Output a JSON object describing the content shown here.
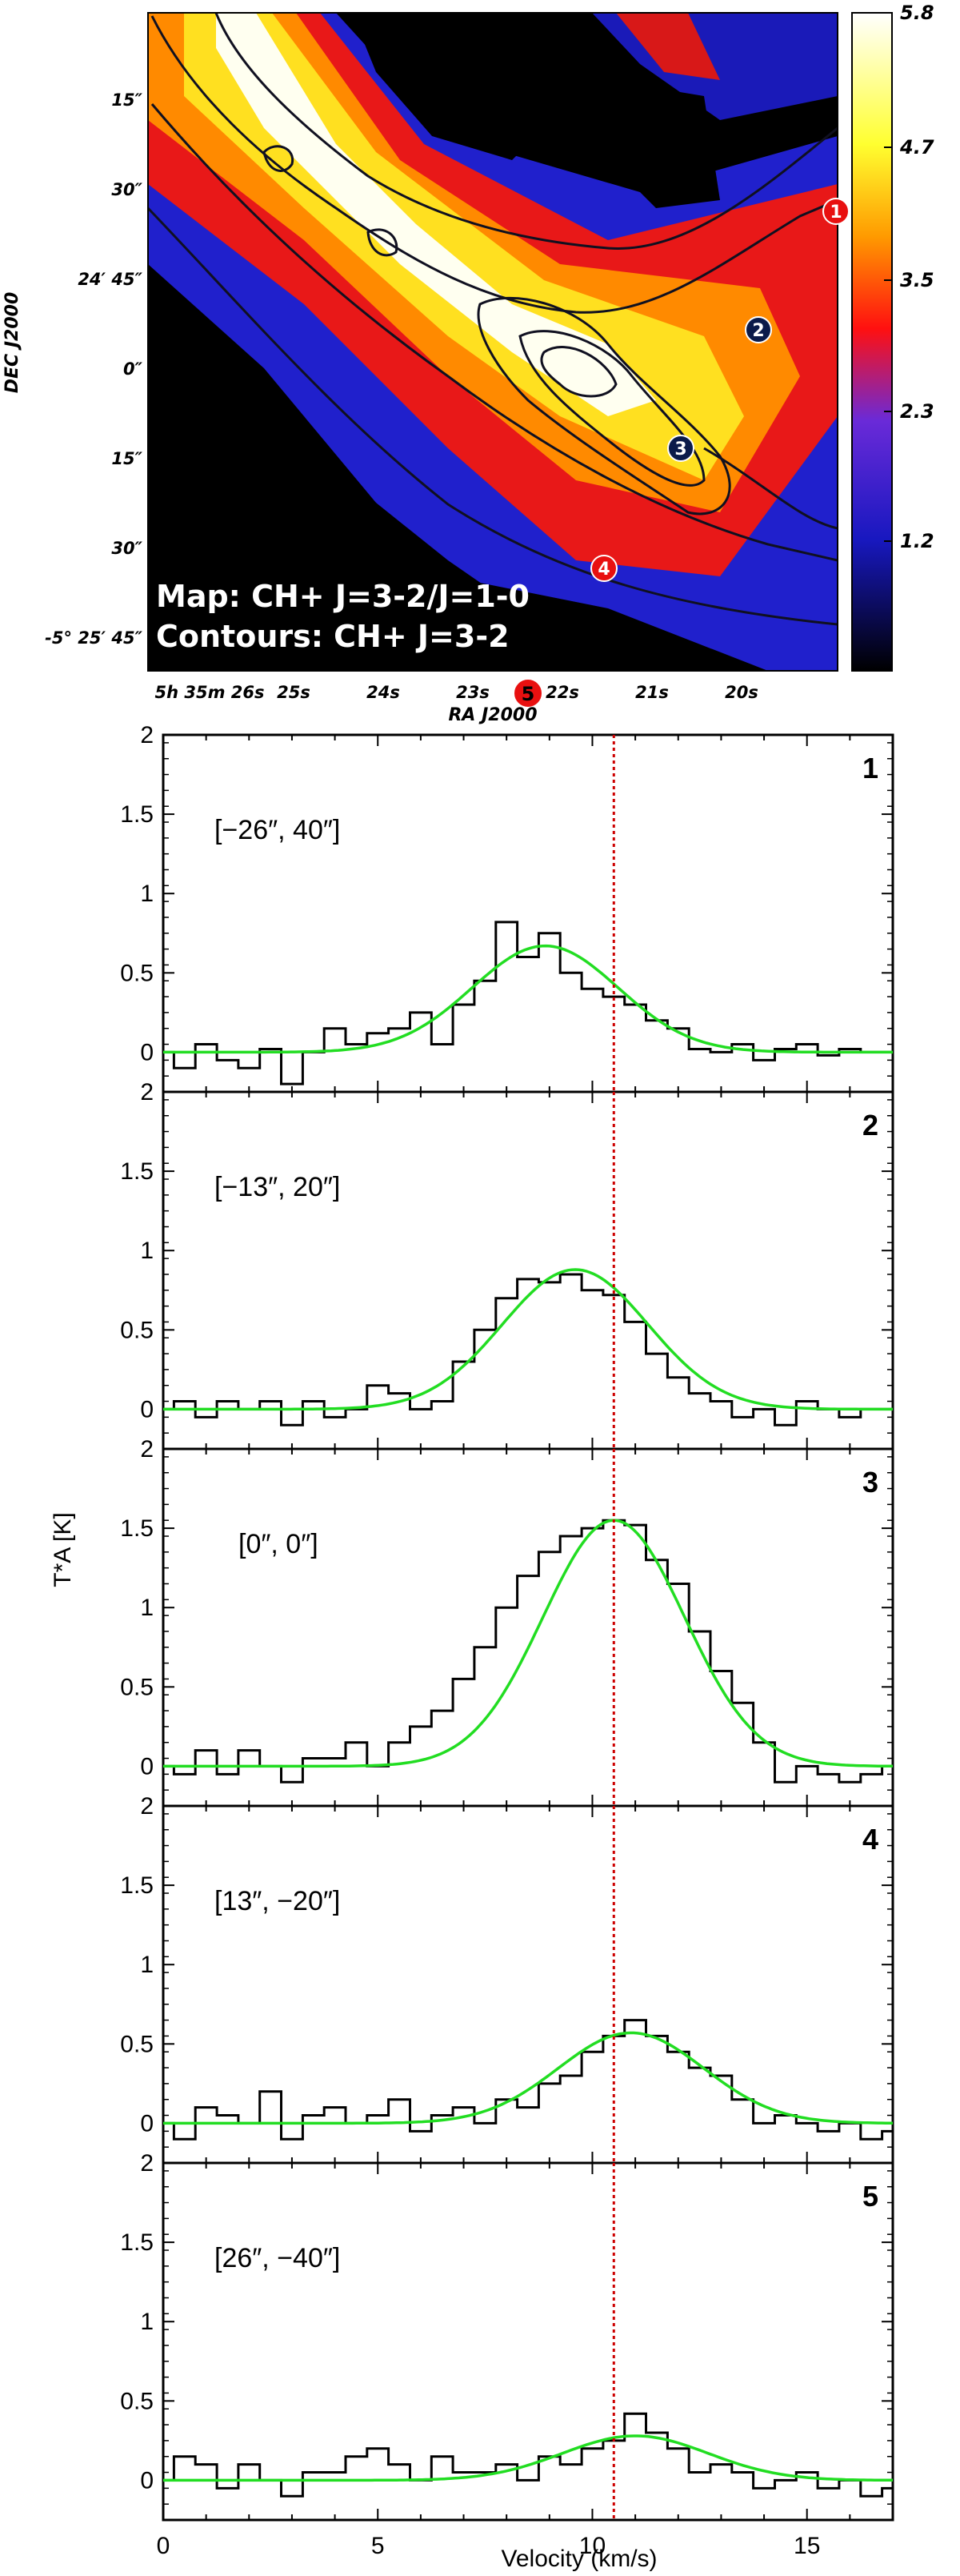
{
  "map": {
    "title_line1": "Map: CH+ J=3-2/J=1-0",
    "title_line2": "Contours: CH+ J=3-2",
    "y_axis_label": "DEC J2000",
    "x_axis_label": "RA J2000",
    "dec_ticks": [
      "15″",
      "30″",
      "24′ 45″",
      "0″",
      "15″",
      "30″",
      "-5° 25′ 45″"
    ],
    "ra_ticks": [
      "5h 35m 26s",
      "25s",
      "24s",
      "23s",
      "22s",
      "21s",
      "20s"
    ],
    "colorbar_ticks": [
      "5.8",
      "4.7",
      "3.5",
      "2.3",
      "1.2"
    ],
    "markers": [
      {
        "label": "1",
        "color": "#e81010"
      },
      {
        "label": "2",
        "color": "#0b1b4a"
      },
      {
        "label": "3",
        "color": "#0b1b4a"
      },
      {
        "label": "4",
        "color": "#e81010"
      },
      {
        "label": "5",
        "color": "#e81010"
      }
    ]
  },
  "chart_data": {
    "type": "line",
    "xlabel": "Velocity (km/s)",
    "ylabel": "T*A [K]",
    "xlim": [
      0,
      17
    ],
    "ylim": [
      -0.25,
      2.0
    ],
    "x_ticks": [
      "0",
      "5",
      "10",
      "15"
    ],
    "y_ticks": [
      "2",
      "1.5",
      "1",
      "0.5",
      "0"
    ],
    "reference_velocity": 10.5,
    "reference_color": "#cc0000",
    "fit_color": "#22dd22",
    "panels": [
      {
        "id": "1",
        "position": "[−26″, 40″]",
        "fit": {
          "amplitude": 0.67,
          "center": 8.9,
          "sigma": 1.7
        },
        "velocity": [
          0.0,
          0.5,
          1.0,
          1.5,
          2.0,
          2.5,
          3.0,
          3.5,
          4.0,
          4.5,
          5.0,
          5.5,
          6.0,
          6.5,
          7.0,
          7.5,
          8.0,
          8.5,
          9.0,
          9.5,
          10.0,
          10.5,
          11.0,
          11.5,
          12.0,
          12.5,
          13.0,
          13.5,
          14.0,
          14.5,
          15.0,
          15.5,
          16.0,
          16.5,
          17.0
        ],
        "intensity": [
          0.0,
          -0.1,
          0.05,
          -0.05,
          -0.1,
          0.02,
          -0.2,
          0.0,
          0.15,
          0.05,
          0.12,
          0.15,
          0.25,
          0.05,
          0.3,
          0.45,
          0.82,
          0.6,
          0.75,
          0.5,
          0.4,
          0.35,
          0.3,
          0.2,
          0.15,
          0.02,
          0.0,
          0.05,
          -0.05,
          0.02,
          0.05,
          -0.02,
          0.02,
          0.0,
          0.0
        ]
      },
      {
        "id": "2",
        "position": "[−13″, 20″]",
        "fit": {
          "amplitude": 0.88,
          "center": 9.6,
          "sigma": 1.7
        },
        "velocity": [
          0.0,
          0.5,
          1.0,
          1.5,
          2.0,
          2.5,
          3.0,
          3.5,
          4.0,
          4.5,
          5.0,
          5.5,
          6.0,
          6.5,
          7.0,
          7.5,
          8.0,
          8.5,
          9.0,
          9.5,
          10.0,
          10.5,
          11.0,
          11.5,
          12.0,
          12.5,
          13.0,
          13.5,
          14.0,
          14.5,
          15.0,
          15.5,
          16.0,
          16.5,
          17.0
        ],
        "intensity": [
          0.0,
          0.05,
          -0.05,
          0.05,
          0.0,
          0.05,
          -0.1,
          0.05,
          -0.05,
          0.0,
          0.15,
          0.1,
          0.0,
          0.05,
          0.3,
          0.5,
          0.7,
          0.82,
          0.8,
          0.85,
          0.75,
          0.72,
          0.55,
          0.35,
          0.2,
          0.1,
          0.05,
          -0.05,
          0.0,
          -0.1,
          0.05,
          0.0,
          -0.05,
          0.0,
          0.0
        ]
      },
      {
        "id": "3",
        "position": "[0″, 0″]",
        "fit": {
          "amplitude": 1.55,
          "center": 10.5,
          "sigma": 1.65
        },
        "velocity": [
          0.0,
          0.5,
          1.0,
          1.5,
          2.0,
          2.5,
          3.0,
          3.5,
          4.0,
          4.5,
          5.0,
          5.5,
          6.0,
          6.5,
          7.0,
          7.5,
          8.0,
          8.5,
          9.0,
          9.5,
          10.0,
          10.5,
          11.0,
          11.5,
          12.0,
          12.5,
          13.0,
          13.5,
          14.0,
          14.5,
          15.0,
          15.5,
          16.0,
          16.5,
          17.0
        ],
        "intensity": [
          0.0,
          -0.05,
          0.1,
          -0.05,
          0.1,
          0.0,
          -0.1,
          0.05,
          0.05,
          0.15,
          0.0,
          0.15,
          0.25,
          0.35,
          0.55,
          0.75,
          1.0,
          1.2,
          1.35,
          1.45,
          1.5,
          1.55,
          1.52,
          1.3,
          1.15,
          0.85,
          0.6,
          0.4,
          0.15,
          -0.1,
          0.0,
          -0.05,
          -0.1,
          -0.05,
          0.0
        ]
      },
      {
        "id": "4",
        "position": "[13″, −20″]",
        "fit": {
          "amplitude": 0.57,
          "center": 10.9,
          "sigma": 1.7
        },
        "velocity": [
          0.0,
          0.5,
          1.0,
          1.5,
          2.0,
          2.5,
          3.0,
          3.5,
          4.0,
          4.5,
          5.0,
          5.5,
          6.0,
          6.5,
          7.0,
          7.5,
          8.0,
          8.5,
          9.0,
          9.5,
          10.0,
          10.5,
          11.0,
          11.5,
          12.0,
          12.5,
          13.0,
          13.5,
          14.0,
          14.5,
          15.0,
          15.5,
          16.0,
          16.5,
          17.0
        ],
        "intensity": [
          0.0,
          -0.1,
          0.1,
          0.05,
          0.0,
          0.2,
          -0.1,
          0.05,
          0.1,
          0.0,
          0.05,
          0.15,
          -0.05,
          0.05,
          0.1,
          0.0,
          0.15,
          0.1,
          0.25,
          0.3,
          0.45,
          0.55,
          0.65,
          0.55,
          0.45,
          0.35,
          0.3,
          0.15,
          0.0,
          0.05,
          0.0,
          -0.05,
          0.0,
          -0.1,
          -0.05
        ]
      },
      {
        "id": "5",
        "position": "[26″, −40″]",
        "fit": {
          "amplitude": 0.28,
          "center": 11.0,
          "sigma": 1.7
        },
        "velocity": [
          0.0,
          0.5,
          1.0,
          1.5,
          2.0,
          2.5,
          3.0,
          3.5,
          4.0,
          4.5,
          5.0,
          5.5,
          6.0,
          6.5,
          7.0,
          7.5,
          8.0,
          8.5,
          9.0,
          9.5,
          10.0,
          10.5,
          11.0,
          11.5,
          12.0,
          12.5,
          13.0,
          13.5,
          14.0,
          14.5,
          15.0,
          15.5,
          16.0,
          16.5,
          17.0
        ],
        "intensity": [
          0.0,
          0.15,
          0.1,
          -0.05,
          0.1,
          0.0,
          -0.1,
          0.05,
          0.05,
          0.15,
          0.2,
          0.1,
          0.0,
          0.15,
          0.05,
          0.05,
          0.1,
          0.0,
          0.15,
          0.1,
          0.2,
          0.25,
          0.42,
          0.3,
          0.2,
          0.05,
          0.1,
          0.05,
          -0.05,
          0.0,
          0.05,
          -0.05,
          0.0,
          -0.1,
          -0.05
        ]
      }
    ]
  }
}
